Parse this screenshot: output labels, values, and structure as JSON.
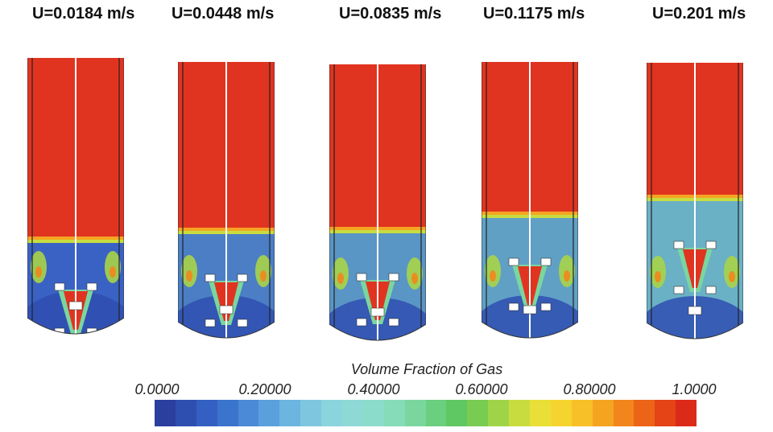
{
  "vessels": [
    {
      "label": "U=0.0184 m/s",
      "gas_level": 0.0
    },
    {
      "label": "U=0.0448 m/s",
      "gas_level": 0.25
    },
    {
      "label": "U=0.0835 m/s",
      "gas_level": 0.45
    },
    {
      "label": "U=0.1175 m/s",
      "gas_level": 0.55
    },
    {
      "label": "U=0.201 m/s",
      "gas_level": 0.7
    }
  ],
  "legend": {
    "title": "Volume Fraction of Gas",
    "ticks": [
      "0.0000",
      "0.20000",
      "0.40000",
      "0.60000",
      "0.80000",
      "1.0000"
    ],
    "colors": [
      "#2b3f9e",
      "#2f4fb0",
      "#3360c2",
      "#3b74cc",
      "#4a8ad6",
      "#5aa0dc",
      "#6cb5e0",
      "#7ec6e0",
      "#8ad4de",
      "#8ed9d6",
      "#8cdccb",
      "#86dcb8",
      "#7ad69e",
      "#6acf7e",
      "#5fc862",
      "#78cc52",
      "#a0d448",
      "#c8dc40",
      "#e8df38",
      "#f6d430",
      "#f8c028",
      "#f5a422",
      "#f2861c",
      "#ec6418",
      "#e44416",
      "#dc2a18"
    ]
  }
}
